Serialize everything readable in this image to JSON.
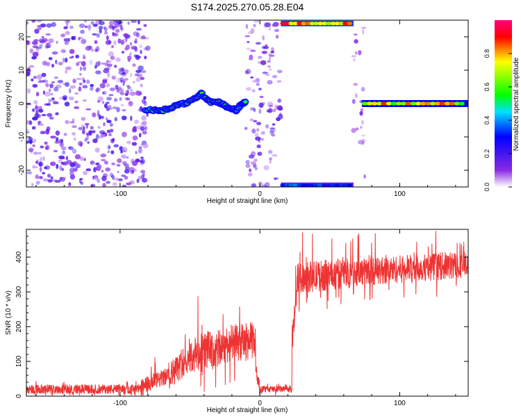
{
  "title": "S174.2025.270.05.28.E04",
  "colors": {
    "snr_line": "#ee3333",
    "spectro_dots": "#8a2be2",
    "spectro_dots_light": "#d9b8f5",
    "frame": "#000000"
  },
  "chart_data": [
    {
      "type": "heatmap",
      "title": "S174.2025.270.05.28.E04",
      "xlabel": "Height of straight line (km)",
      "ylabel": "Frequency (Hz)",
      "xlim": [
        -167,
        149
      ],
      "ylim": [
        -25,
        25
      ],
      "xticks": [
        -100,
        0,
        100
      ],
      "yticks": [
        -20,
        -10,
        0,
        10,
        20
      ],
      "colorbar": {
        "label": "Normalized spectral amplitude",
        "range": [
          0,
          1
        ],
        "ticks": [
          0.0,
          0.2,
          0.4,
          0.6,
          0.8
        ],
        "tick_labels": [
          "0.0",
          "0.2",
          "0.4",
          "0.6",
          "0.8"
        ],
        "colormap": "rainbow (white-violet-blue-cyan-green-yellow-red-magenta)"
      },
      "noise_regions": [
        {
          "x_range": [
            -167,
            -80
          ],
          "density": 0.75,
          "amplitude": 0.18
        },
        {
          "x_range": [
            -10,
            15
          ],
          "density": 0.5,
          "amplitude": 0.15
        },
        {
          "x_range": [
            67,
            75
          ],
          "density": 0.35,
          "amplitude": 0.1
        }
      ],
      "signal_track": {
        "x": [
          -82,
          -75,
          -70,
          -65,
          -60,
          -55,
          -50,
          -45,
          -42,
          -38,
          -35,
          -30,
          -27,
          -24,
          -20,
          -17,
          -15,
          -12,
          -10
        ],
        "freq": [
          -2,
          -2,
          -2,
          -1.5,
          -0.5,
          0,
          0.5,
          2,
          3,
          1.5,
          0.5,
          0.5,
          0,
          -1,
          -1.5,
          -2,
          -1,
          0,
          0.5
        ],
        "amplitude": [
          0.45,
          0.55,
          0.6,
          0.5,
          0.55,
          0.5,
          0.6,
          0.65,
          0.55,
          0.6,
          0.6,
          0.55,
          0.6,
          0.5,
          0.55,
          0.5,
          0.5,
          0.5,
          0.45
        ]
      },
      "alias_bands": [
        {
          "x_range": [
            15,
            67
          ],
          "freq": 24,
          "amplitude": 0.85
        },
        {
          "x_range": [
            15,
            67
          ],
          "freq": -24.5,
          "amplitude": 0.35
        }
      ],
      "steady_band": {
        "x_range": [
          73,
          149
        ],
        "freq": 0,
        "amplitude": 0.85
      }
    },
    {
      "type": "line",
      "xlabel": "Height of straight line (km)",
      "ylabel": "SNR (10 * v/v)",
      "xlim": [
        -167,
        149
      ],
      "ylim": [
        0,
        480
      ],
      "xticks": [
        -100,
        0,
        100
      ],
      "yticks": [
        0,
        100,
        200,
        300,
        400
      ],
      "series": [
        {
          "name": "SNR",
          "segments": [
            {
              "x_range": [
                -167,
                -85
              ],
              "base_start": 20,
              "base_end": 20,
              "noise": 14,
              "spike_max": 45
            },
            {
              "x_range": [
                -85,
                -65
              ],
              "base_start": 25,
              "base_end": 60,
              "noise": 25,
              "spike_max": 120
            },
            {
              "x_range": [
                -65,
                -50
              ],
              "base_start": 60,
              "base_end": 110,
              "noise": 40,
              "spike_max": 180
            },
            {
              "x_range": [
                -50,
                -35
              ],
              "base_start": 110,
              "base_end": 140,
              "noise": 55,
              "spike_max": 295
            },
            {
              "x_range": [
                -35,
                -24
              ],
              "base_start": 120,
              "base_end": 150,
              "noise": 55,
              "spike_max": 265
            },
            {
              "x_range": [
                -24,
                -3
              ],
              "base_start": 150,
              "base_end": 160,
              "noise": 55,
              "spike_max": 280
            },
            {
              "x_range": [
                -3,
                0
              ],
              "base_start": 80,
              "base_end": 20,
              "noise": 20,
              "spike_max": 120
            },
            {
              "x_range": [
                0,
                23
              ],
              "base_start": 20,
              "base_end": 20,
              "noise": 10,
              "spike_max": 38
            },
            {
              "x_range": [
                23,
                27
              ],
              "base_start": 160,
              "base_end": 330,
              "noise": 40,
              "spike_max": 450
            },
            {
              "x_range": [
                27,
                65
              ],
              "base_start": 340,
              "base_end": 355,
              "noise": 45,
              "spike_max": 475
            },
            {
              "x_range": [
                65,
                149
              ],
              "base_start": 355,
              "base_end": 380,
              "noise": 40,
              "spike_max": 480
            }
          ]
        }
      ]
    }
  ]
}
